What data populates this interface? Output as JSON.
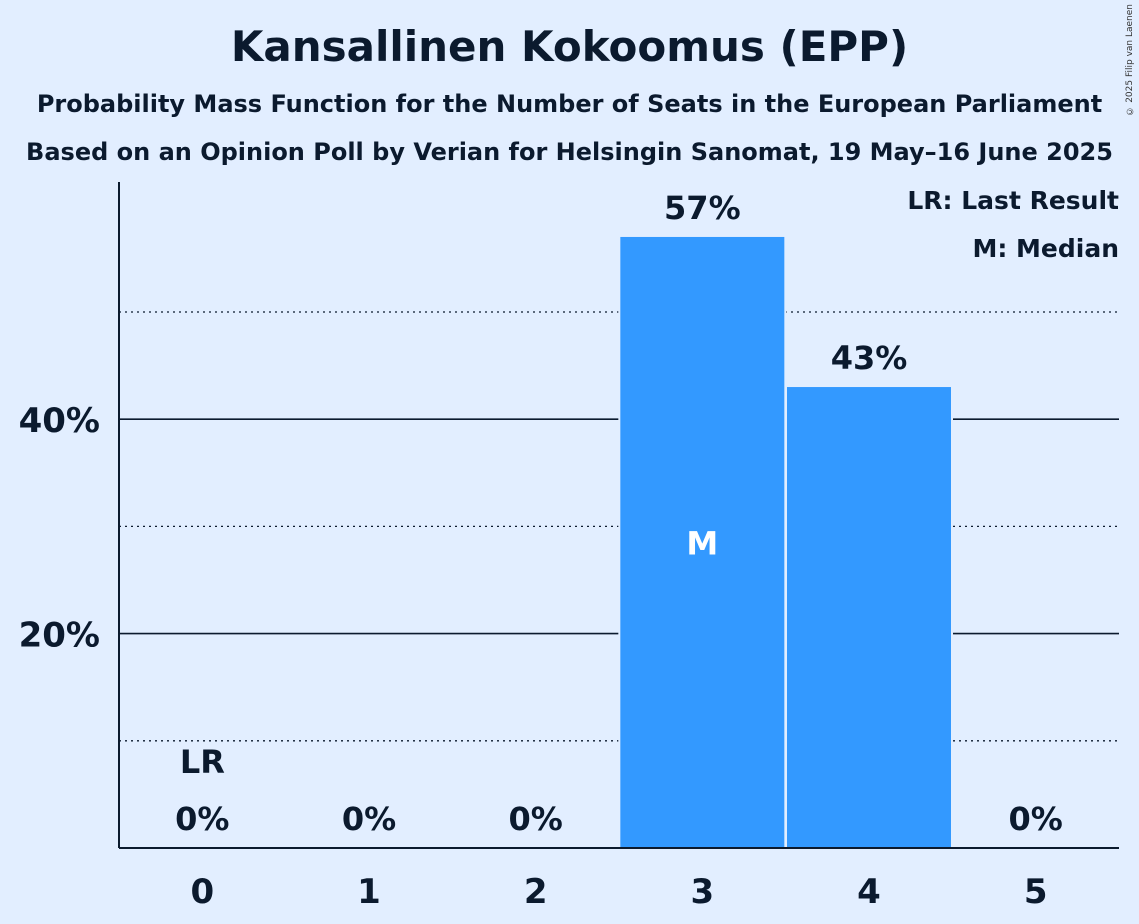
{
  "chart_data": {
    "type": "bar",
    "title": "Kansallinen Kokoomus (EPP)",
    "subtitle": "Probability Mass Function for the Number of Seats in the European Parliament",
    "subtitle2": "Based on an Opinion Poll by Verian for Helsingin Sanomat, 19 May–16 June 2025",
    "categories": [
      "0",
      "1",
      "2",
      "3",
      "4",
      "5"
    ],
    "values": [
      0,
      0,
      0,
      57,
      43,
      0
    ],
    "value_labels": [
      "0%",
      "0%",
      "0%",
      "57%",
      "43%",
      "0%"
    ],
    "ylim": [
      0,
      62
    ],
    "yticks": [
      20,
      40
    ],
    "ytick_labels": [
      "20%",
      "40%"
    ],
    "minor_gridlines": [
      10,
      30,
      50
    ],
    "last_result_seat": 0,
    "last_result_marker": "LR",
    "median_seat": 3,
    "median_marker": "M",
    "bar_color": "#3399ff",
    "legend": [
      "LR: Last Result",
      "M: Median"
    ],
    "xlabel": "",
    "ylabel": ""
  },
  "copyright": "© 2025 Filip van Laenen"
}
